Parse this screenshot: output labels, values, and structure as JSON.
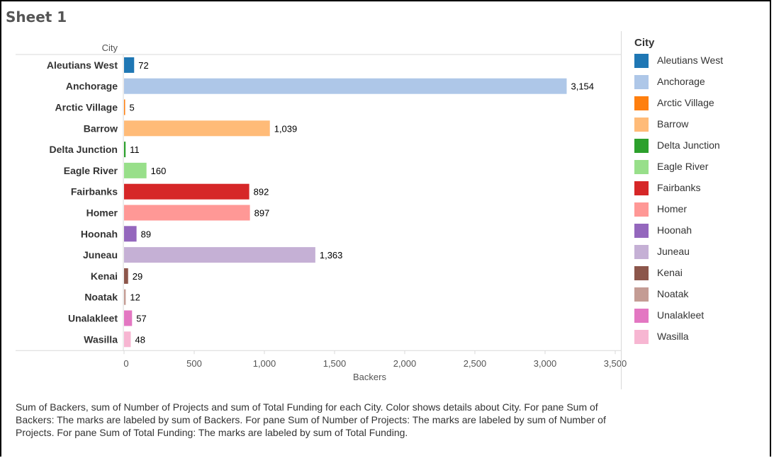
{
  "sheet_title": "Sheet 1",
  "caption": "Sum of Backers, sum of Number of Projects and sum of Total Funding for each City. Color shows details about City. For pane Sum of Backers: The marks are labeled by sum of Backers. For pane Sum of Number of Projects: The marks are labeled by sum of Number of Projects. For pane Sum of Total Funding: The marks are labeled by sum of Total Funding.",
  "legend": {
    "title": "City"
  },
  "chart_data": {
    "type": "bar",
    "orientation": "horizontal",
    "row_header": "City",
    "xlabel": "Backers",
    "xlim": [
      0,
      3500
    ],
    "x_ticks": [
      0,
      500,
      1000,
      1500,
      2000,
      2500,
      3000,
      3500
    ],
    "x_tick_labels": [
      "0",
      "500",
      "1,000",
      "1,500",
      "2,000",
      "2,500",
      "3,000",
      "3,500"
    ],
    "categories": [
      "Aleutians West",
      "Anchorage",
      "Arctic Village",
      "Barrow",
      "Delta Junction",
      "Eagle River",
      "Fairbanks",
      "Homer",
      "Hoonah",
      "Juneau",
      "Kenai",
      "Noatak",
      "Unalakleet",
      "Wasilla"
    ],
    "values": [
      72,
      3154,
      5,
      1039,
      11,
      160,
      892,
      897,
      89,
      1363,
      29,
      12,
      57,
      48
    ],
    "value_labels": [
      "72",
      "3,154",
      "5",
      "1,039",
      "11",
      "160",
      "892",
      "897",
      "89",
      "1,363",
      "29",
      "12",
      "57",
      "48"
    ],
    "colors": [
      "#1f77b4",
      "#aec7e8",
      "#ff7f0e",
      "#ffbb78",
      "#2ca02c",
      "#98df8a",
      "#d62728",
      "#ff9896",
      "#9467bd",
      "#c5b0d5",
      "#8c564b",
      "#c49c94",
      "#e377c2",
      "#f7b6d2"
    ],
    "legend_placement": "right",
    "grid": false
  }
}
